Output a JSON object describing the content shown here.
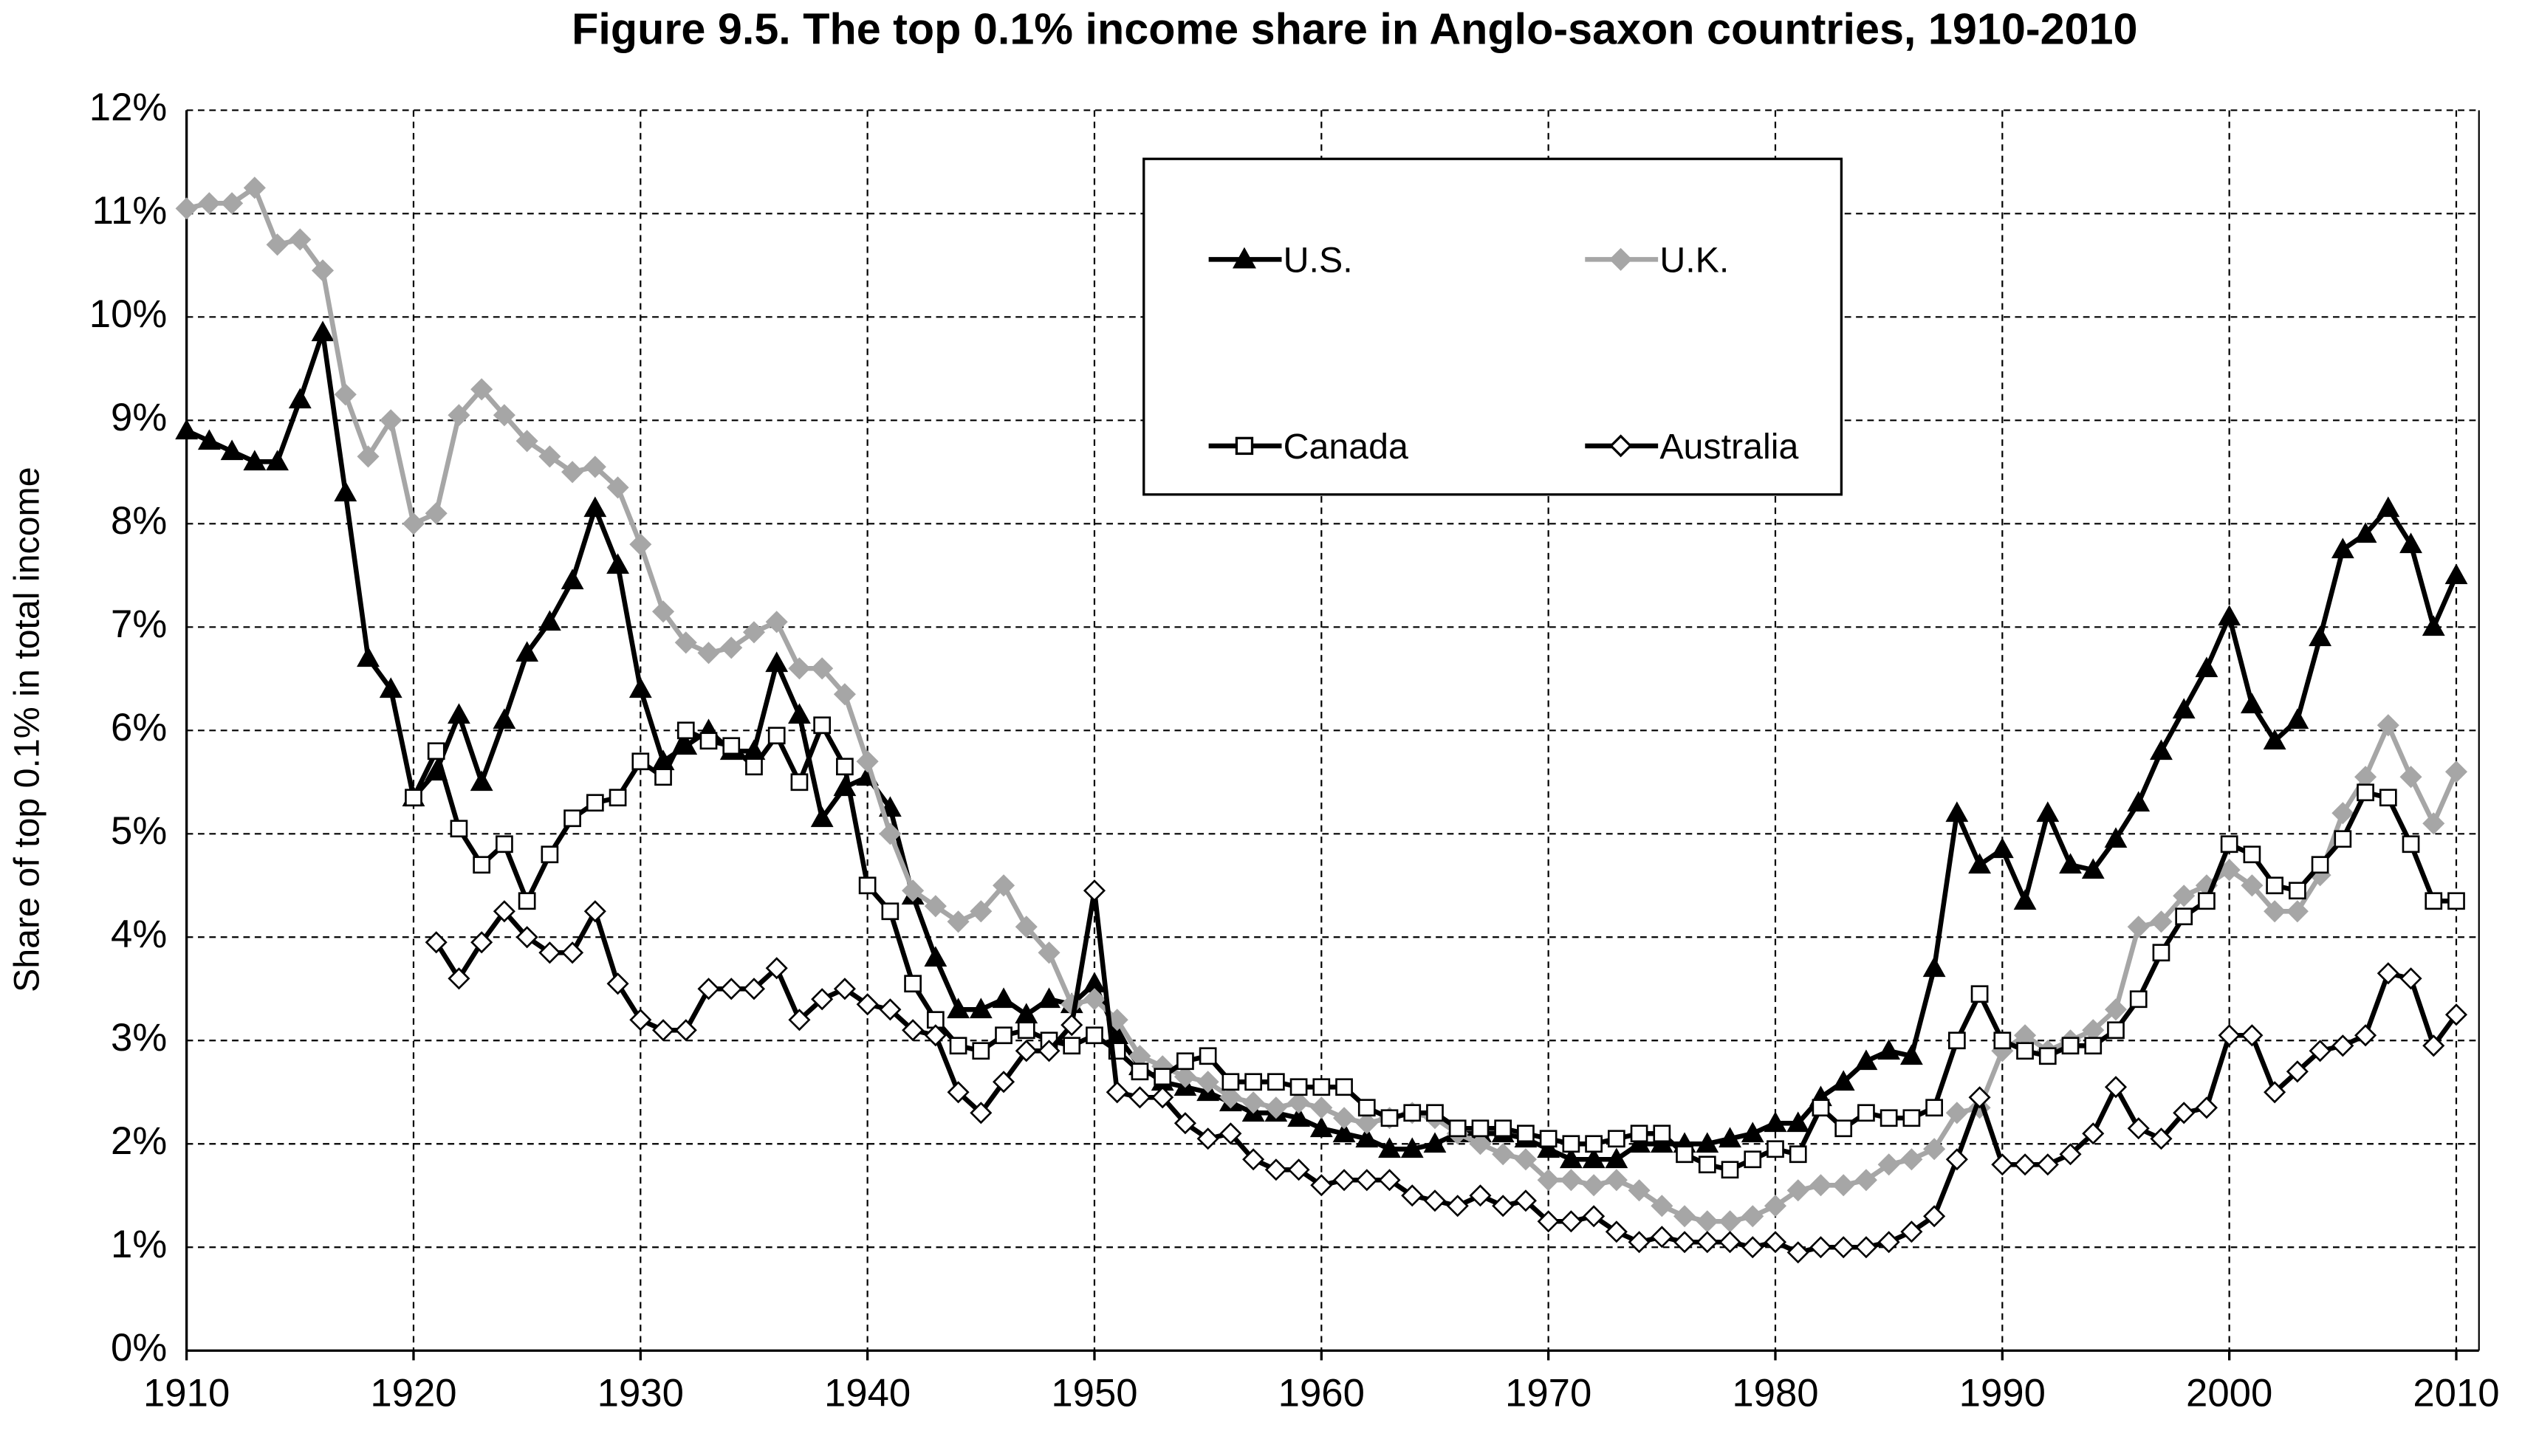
{
  "chart_data": {
    "type": "line",
    "title": "Figure 9.5. The top 0.1% income share in Anglo-saxon countries, 1910-2010",
    "y_label": "Share of top 0.1% in total income",
    "xlim": [
      1910,
      2011
    ],
    "ylim": [
      0,
      12
    ],
    "xticks": [
      1910,
      1920,
      1930,
      1940,
      1950,
      1960,
      1970,
      1980,
      1990,
      2000,
      2010
    ],
    "yticks": [
      {
        "value": 0,
        "label": "0%"
      },
      {
        "value": 1,
        "label": "1%"
      },
      {
        "value": 2,
        "label": "2%"
      },
      {
        "value": 3,
        "label": "3%"
      },
      {
        "value": 4,
        "label": "4%"
      },
      {
        "value": 5,
        "label": "5%"
      },
      {
        "value": 6,
        "label": "6%"
      },
      {
        "value": 7,
        "label": "7%"
      },
      {
        "value": 8,
        "label": "8%"
      },
      {
        "value": 9,
        "label": "9%"
      },
      {
        "value": 10,
        "label": "10%"
      },
      {
        "value": 11,
        "label": "11%"
      },
      {
        "value": 12,
        "label": "12%"
      }
    ],
    "grid": true,
    "legend": "top",
    "x": [
      1910,
      1911,
      1912,
      1913,
      1914,
      1915,
      1916,
      1917,
      1918,
      1919,
      1920,
      1921,
      1922,
      1923,
      1924,
      1925,
      1926,
      1927,
      1928,
      1929,
      1930,
      1931,
      1932,
      1933,
      1934,
      1935,
      1936,
      1937,
      1938,
      1939,
      1940,
      1941,
      1942,
      1943,
      1944,
      1945,
      1946,
      1947,
      1948,
      1949,
      1950,
      1951,
      1952,
      1953,
      1954,
      1955,
      1956,
      1957,
      1958,
      1959,
      1960,
      1961,
      1962,
      1963,
      1964,
      1965,
      1966,
      1967,
      1968,
      1969,
      1970,
      1971,
      1972,
      1973,
      1974,
      1975,
      1976,
      1977,
      1978,
      1979,
      1980,
      1981,
      1982,
      1983,
      1984,
      1985,
      1986,
      1987,
      1988,
      1989,
      1990,
      1991,
      1992,
      1993,
      1994,
      1995,
      1996,
      1997,
      1998,
      1999,
      2000,
      2001,
      2002,
      2003,
      2004,
      2005,
      2006,
      2007,
      2008,
      2009,
      2010
    ],
    "series": [
      {
        "name": "U.S.",
        "color": "#000000",
        "marker": "triangle",
        "marker_fill": "#000000",
        "values": [
          8.9,
          8.8,
          8.7,
          8.6,
          8.6,
          9.2,
          9.85,
          8.3,
          6.7,
          6.4,
          5.35,
          5.6,
          6.15,
          5.5,
          6.1,
          6.75,
          7.05,
          7.45,
          8.15,
          7.6,
          6.4,
          5.7,
          5.85,
          6.0,
          5.8,
          5.8,
          6.65,
          6.15,
          5.15,
          5.45,
          5.55,
          5.25,
          4.4,
          3.8,
          3.3,
          3.3,
          3.4,
          3.25,
          3.4,
          3.35,
          3.55,
          3.05,
          2.75,
          2.6,
          2.55,
          2.5,
          2.4,
          2.3,
          2.3,
          2.25,
          2.15,
          2.1,
          2.05,
          1.95,
          1.95,
          2.0,
          2.1,
          2.1,
          2.1,
          2.05,
          1.95,
          1.85,
          1.85,
          1.85,
          2.0,
          2.0,
          2.0,
          2.0,
          2.05,
          2.1,
          2.2,
          2.2,
          2.45,
          2.6,
          2.8,
          2.9,
          2.85,
          3.7,
          5.2,
          4.7,
          4.85,
          4.35,
          5.2,
          4.7,
          4.65,
          4.95,
          5.3,
          5.8,
          6.2,
          6.6,
          7.1,
          6.25,
          5.9,
          6.1,
          6.9,
          7.75,
          7.9,
          8.15,
          7.8,
          7.0,
          7.5
        ]
      },
      {
        "name": "U.K.",
        "color": "#a6a6a6",
        "marker": "diamond",
        "marker_fill": "#a6a6a6",
        "values": [
          11.05,
          11.1,
          11.1,
          11.25,
          10.7,
          10.75,
          10.45,
          9.25,
          8.65,
          9.0,
          8.0,
          8.1,
          9.05,
          9.3,
          9.05,
          8.8,
          8.65,
          8.5,
          8.55,
          8.35,
          7.8,
          7.15,
          6.85,
          6.75,
          6.8,
          6.95,
          7.05,
          6.6,
          6.6,
          6.35,
          5.7,
          5.0,
          4.45,
          4.3,
          4.15,
          4.25,
          4.5,
          4.1,
          3.85,
          3.35,
          3.4,
          3.2,
          2.85,
          2.75,
          2.65,
          2.6,
          2.45,
          2.4,
          2.35,
          2.4,
          2.35,
          2.25,
          2.2,
          2.25,
          2.3,
          2.25,
          2.1,
          2.0,
          1.9,
          1.85,
          1.65,
          1.65,
          1.6,
          1.65,
          1.55,
          1.4,
          1.3,
          1.25,
          1.25,
          1.3,
          1.4,
          1.55,
          1.6,
          1.6,
          1.65,
          1.8,
          1.85,
          1.95,
          2.3,
          2.35,
          2.9,
          3.05,
          2.9,
          3.0,
          3.1,
          3.3,
          4.1,
          4.15,
          4.4,
          4.5,
          4.65,
          4.5,
          4.25,
          4.25,
          4.6,
          5.2,
          5.55,
          6.05,
          5.55,
          5.1,
          5.6
        ]
      },
      {
        "name": "Canada",
        "color": "#000000",
        "marker": "square",
        "marker_fill": "#ffffff",
        "values": [
          null,
          null,
          null,
          null,
          null,
          null,
          null,
          null,
          null,
          null,
          5.35,
          5.8,
          5.05,
          4.7,
          4.9,
          4.35,
          4.8,
          5.15,
          5.3,
          5.35,
          5.7,
          5.55,
          6.0,
          5.9,
          5.85,
          5.65,
          5.95,
          5.5,
          6.05,
          5.65,
          4.5,
          4.25,
          3.55,
          3.2,
          2.95,
          2.9,
          3.05,
          3.1,
          3.0,
          2.95,
          3.05,
          2.9,
          2.7,
          2.65,
          2.8,
          2.85,
          2.6,
          2.6,
          2.6,
          2.55,
          2.55,
          2.55,
          2.35,
          2.25,
          2.3,
          2.3,
          2.15,
          2.15,
          2.15,
          2.1,
          2.05,
          2.0,
          2.0,
          2.05,
          2.1,
          2.1,
          1.9,
          1.8,
          1.75,
          1.85,
          1.95,
          1.9,
          2.35,
          2.15,
          2.3,
          2.25,
          2.25,
          2.35,
          3.0,
          3.45,
          3.0,
          2.9,
          2.85,
          2.95,
          2.95,
          3.1,
          3.4,
          3.85,
          4.2,
          4.35,
          4.9,
          4.8,
          4.5,
          4.45,
          4.7,
          4.95,
          5.4,
          5.35,
          4.9,
          4.35,
          4.35
        ]
      },
      {
        "name": "Australia",
        "color": "#000000",
        "marker": "diamond",
        "marker_fill": "#ffffff",
        "values": [
          null,
          null,
          null,
          null,
          null,
          null,
          null,
          null,
          null,
          null,
          null,
          3.95,
          3.6,
          3.95,
          4.25,
          4.0,
          3.85,
          3.85,
          4.25,
          3.55,
          3.2,
          3.1,
          3.1,
          3.5,
          3.5,
          3.5,
          3.7,
          3.2,
          3.4,
          3.5,
          3.35,
          3.3,
          3.1,
          3.05,
          2.5,
          2.3,
          2.6,
          2.9,
          2.9,
          3.15,
          4.45,
          2.5,
          2.45,
          2.45,
          2.2,
          2.05,
          2.1,
          1.85,
          1.75,
          1.75,
          1.6,
          1.65,
          1.65,
          1.65,
          1.5,
          1.45,
          1.4,
          1.5,
          1.4,
          1.45,
          1.25,
          1.25,
          1.3,
          1.15,
          1.05,
          1.1,
          1.05,
          1.05,
          1.05,
          1.0,
          1.05,
          0.95,
          1.0,
          1.0,
          1.0,
          1.05,
          1.15,
          1.3,
          1.85,
          2.45,
          1.8,
          1.8,
          1.8,
          1.9,
          2.1,
          2.55,
          2.15,
          2.05,
          2.3,
          2.35,
          3.05,
          3.05,
          2.5,
          2.7,
          2.9,
          2.95,
          3.05,
          3.65,
          3.6,
          2.95,
          3.25
        ]
      }
    ]
  }
}
